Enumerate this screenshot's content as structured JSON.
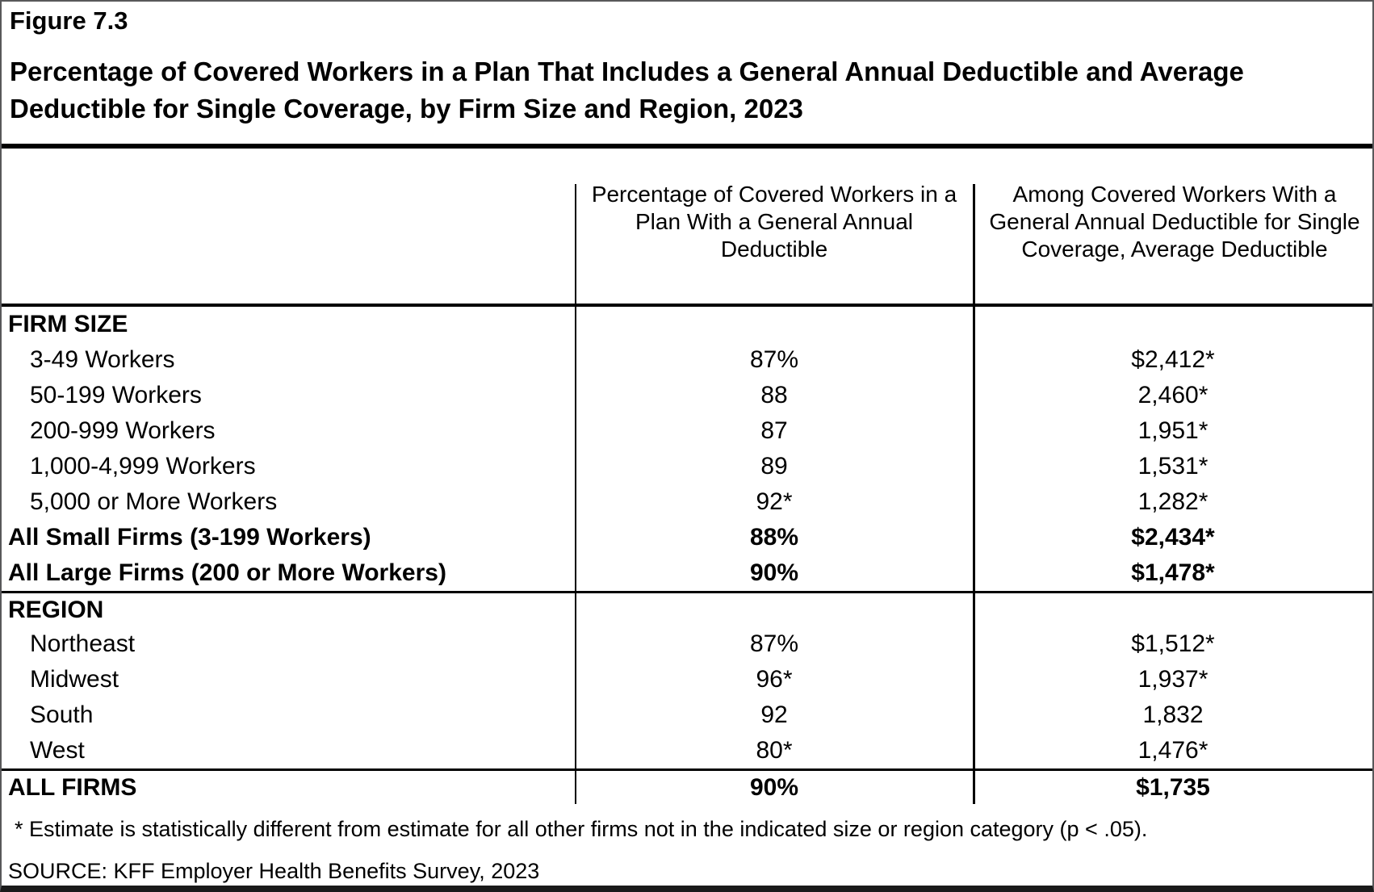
{
  "figure": {
    "label": "Figure 7.3",
    "title_line1": "Percentage of Covered Workers in a Plan That Includes a General Annual Deductible and Average",
    "title_line2": "Deductible for Single Coverage, by Firm Size and Region, 2023"
  },
  "table": {
    "col2_header": {
      "lines": [
        "Percentage of Covered Workers in a",
        "Plan With a General Annual",
        "Deductible"
      ]
    },
    "col3_header": {
      "lines": [
        "Among Covered Workers With a",
        "General Annual Deductible for Single",
        "Coverage, Average Deductible"
      ]
    },
    "rows": [
      {
        "label": "FIRM SIZE",
        "pct": "",
        "deductible": "",
        "type": "section"
      },
      {
        "label": "3-49 Workers",
        "pct": "87%",
        "deductible": "$2,412*",
        "type": "item"
      },
      {
        "label": "50-199 Workers",
        "pct": "88",
        "deductible": "2,460*",
        "type": "item"
      },
      {
        "label": "200-999 Workers",
        "pct": "87",
        "deductible": "1,951*",
        "type": "item"
      },
      {
        "label": "1,000-4,999 Workers",
        "pct": "89",
        "deductible": "1,531*",
        "type": "item"
      },
      {
        "label": "5,000 or More Workers",
        "pct": "92*",
        "deductible": "1,282*",
        "type": "item"
      },
      {
        "label": "All Small Firms (3-199 Workers)",
        "pct": "88%",
        "deductible": "$2,434*",
        "type": "summary"
      },
      {
        "label": "All Large Firms (200 or More Workers)",
        "pct": "90%",
        "deductible": "$1,478*",
        "type": "summary"
      },
      {
        "label": "REGION",
        "pct": "",
        "deductible": "",
        "type": "section"
      },
      {
        "label": "Northeast",
        "pct": "87%",
        "deductible": "$1,512*",
        "type": "item"
      },
      {
        "label": "Midwest",
        "pct": "96*",
        "deductible": "1,937*",
        "type": "item"
      },
      {
        "label": "South",
        "pct": "92",
        "deductible": "1,832",
        "type": "item"
      },
      {
        "label": "West",
        "pct": "80*",
        "deductible": "1,476*",
        "type": "item"
      },
      {
        "label": "ALL FIRMS",
        "pct": "90%",
        "deductible": "$1,735",
        "type": "summary"
      }
    ]
  },
  "footnote": "* Estimate is statistically different from estimate for all other firms not in the indicated size or region category (p < .05).",
  "source": "SOURCE: KFF Employer Health Benefits Survey, 2023"
}
